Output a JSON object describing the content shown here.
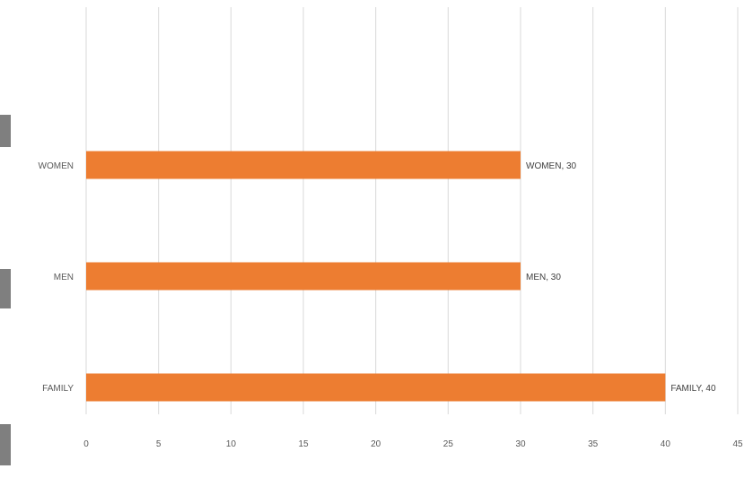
{
  "chart_data": {
    "type": "bar",
    "orientation": "horizontal",
    "categories": [
      "WOMEN",
      "MEN",
      "FAMILY"
    ],
    "values": [
      30,
      30,
      40
    ],
    "data_labels": [
      "WOMEN, 30",
      "MEN, 30",
      "FAMILY, 40"
    ],
    "xlim": [
      0,
      45
    ],
    "x_ticks": [
      0,
      5,
      10,
      15,
      20,
      25,
      30,
      35,
      40,
      45
    ],
    "x_tick_labels": [
      "0",
      "5",
      "10",
      "15",
      "20",
      "25",
      "30",
      "35",
      "40",
      "45"
    ],
    "bar_color": "#ED7D31",
    "grid": true,
    "legend": "none"
  }
}
